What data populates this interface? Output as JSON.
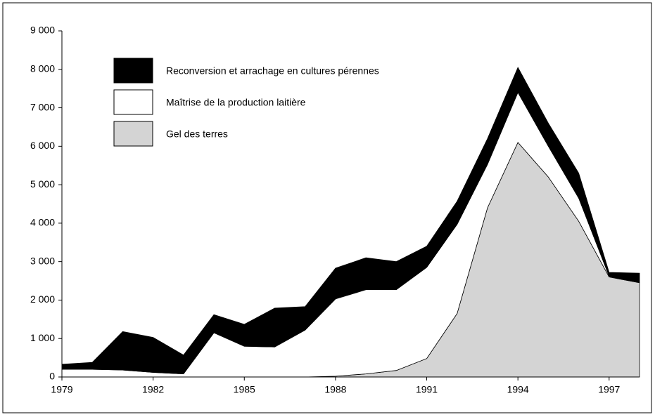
{
  "chart_data": {
    "type": "stacked-area",
    "x": [
      1979,
      1980,
      1981,
      1982,
      1983,
      1984,
      1985,
      1986,
      1987,
      1988,
      1989,
      1990,
      1991,
      1992,
      1993,
      1994,
      1995,
      1996,
      1997,
      1998
    ],
    "xlim": [
      1979,
      1998
    ],
    "xticks": [
      1979,
      1982,
      1985,
      1988,
      1991,
      1994,
      1997
    ],
    "ylim": [
      0,
      9000
    ],
    "yticks": [
      0,
      {
        "value": 1000,
        "label": "1 000"
      },
      {
        "value": 2000,
        "label": "2 000"
      },
      {
        "value": 3000,
        "label": "3 000"
      },
      {
        "value": 4000,
        "label": "4 000"
      },
      {
        "value": 5000,
        "label": "5 000"
      },
      {
        "value": 6000,
        "label": "6 000"
      },
      {
        "value": 7000,
        "label": "7 000"
      },
      {
        "value": 8000,
        "label": "8 000"
      },
      {
        "value": 9000,
        "label": "9 000"
      }
    ],
    "series": [
      {
        "name": "Reconversion et arrachage en cultures pérennes",
        "color": "#000000",
        "values": [
          130,
          180,
          1000,
          910,
          490,
          470,
          570,
          1010,
          610,
          800,
          830,
          730,
          550,
          600,
          670,
          650,
          600,
          650,
          100,
          250
        ]
      },
      {
        "name": "Maîtrise de la production laitière",
        "color": "#ffffff",
        "values": [
          200,
          200,
          180,
          120,
          80,
          1150,
          800,
          780,
          1220,
          2010,
          2190,
          2100,
          2370,
          2320,
          1130,
          1300,
          800,
          600,
          20,
          0
        ]
      },
      {
        "name": "Gel des terres",
        "color": "#d4d4d4",
        "values": [
          0,
          0,
          0,
          0,
          0,
          0,
          0,
          0,
          0,
          20,
          80,
          170,
          480,
          1650,
          4400,
          6100,
          5200,
          4050,
          2600,
          2450
        ]
      }
    ]
  }
}
